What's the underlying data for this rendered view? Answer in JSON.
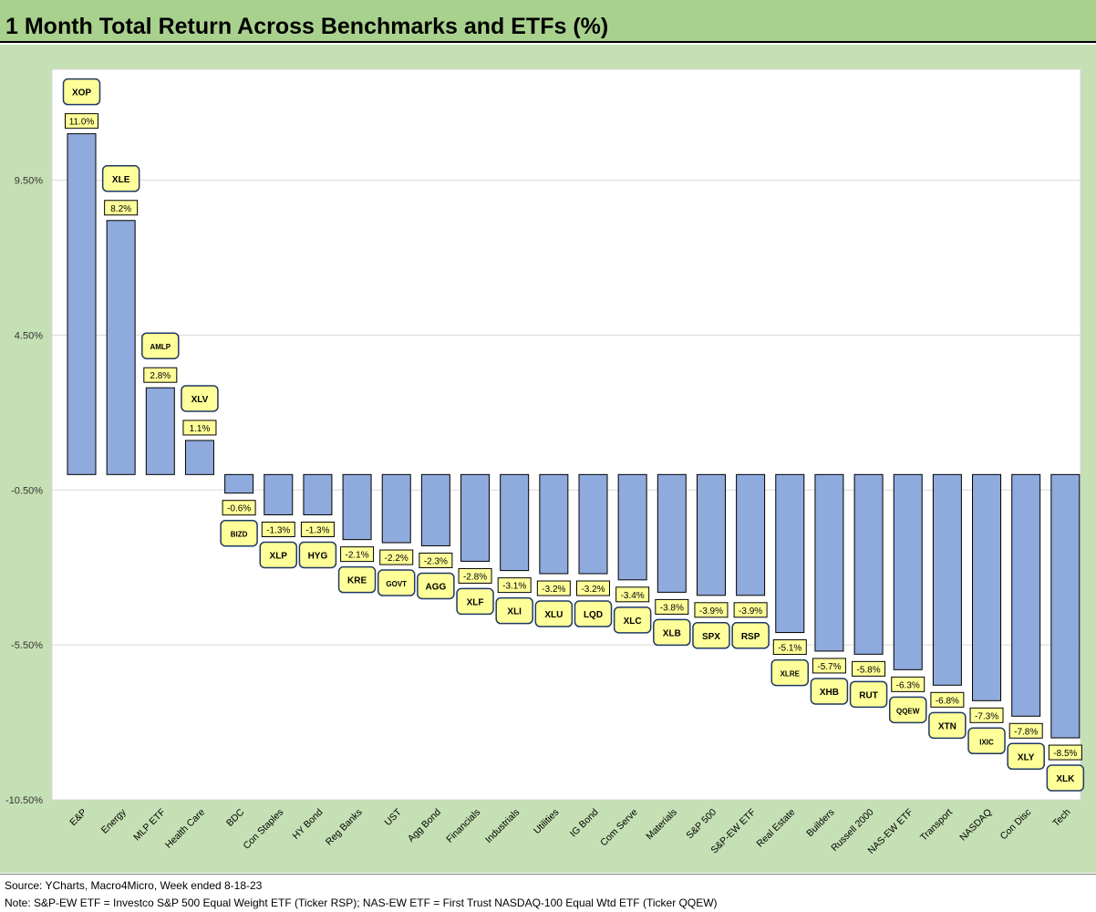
{
  "title": "1 Month Total Return Across Benchmarks and ETFs (%)",
  "footer": {
    "source": "Source: YCharts, Macro4Micro, Week ended 8-18-23",
    "note": "Note: S&P-EW ETF = Investco S&P 500 Equal Weight ETF (Ticker RSP); NAS-EW ETF = First Trust NASDAQ-100 Equal Wtd ETF (Ticker QQEW)"
  },
  "chart_data": {
    "type": "bar",
    "title": "1 Month Total Return Across Benchmarks and ETFs (%)",
    "ylim": [
      -10.5,
      12
    ],
    "yticks": [
      "9.50%",
      "4.50%",
      "-0.50%",
      "-5.50%",
      "-10.50%"
    ],
    "ytick_values": [
      9.5,
      4.5,
      -0.5,
      -5.5,
      -10.5
    ],
    "grid": true,
    "bar_color": "#8faadc",
    "label_color": "#ffff99",
    "categories": [
      "E&P",
      "Energy",
      "MLP ETF",
      "Health Care",
      "BDC",
      "Con Staples",
      "HY Bond",
      "Reg Banks",
      "UST",
      "Agg Bond",
      "Financials",
      "Industrials",
      "Utilities",
      "IG Bond",
      "Com Serve",
      "Materials",
      "S&P 500",
      "S&P-EW ETF",
      "Real Estate",
      "Builders",
      "Russell 2000",
      "NAS-EW ETF",
      "Transport",
      "NASDAQ",
      "Con Disc",
      "Tech"
    ],
    "tickers": [
      "XOP",
      "XLE",
      "AMLP",
      "XLV",
      "BIZD",
      "XLP",
      "HYG",
      "KRE",
      "GOVT",
      "AGG",
      "XLF",
      "XLI",
      "XLU",
      "LQD",
      "XLC",
      "XLB",
      "SPX",
      "RSP",
      "XLRE",
      "XHB",
      "RUT",
      "QQEW",
      "XTN",
      "IXIC",
      "XLY",
      "XLK"
    ],
    "values": [
      11.0,
      8.2,
      2.8,
      1.1,
      -0.6,
      -1.3,
      -1.3,
      -2.1,
      -2.2,
      -2.3,
      -2.8,
      -3.1,
      -3.2,
      -3.2,
      -3.4,
      -3.8,
      -3.9,
      -3.9,
      -5.1,
      -5.7,
      -5.8,
      -6.3,
      -6.8,
      -7.3,
      -7.8,
      -8.5
    ],
    "value_labels": [
      "11.0%",
      "8.2%",
      "2.8%",
      "1.1%",
      "-0.6%",
      "-1.3%",
      "-1.3%",
      "-2.1%",
      "-2.2%",
      "-2.3%",
      "-2.8%",
      "-3.1%",
      "-3.2%",
      "-3.2%",
      "-3.4%",
      "-3.8%",
      "-3.9%",
      "-3.9%",
      "-5.1%",
      "-5.7%",
      "-5.8%",
      "-6.3%",
      "-6.8%",
      "-7.3%",
      "-7.8%",
      "-8.5%"
    ]
  }
}
